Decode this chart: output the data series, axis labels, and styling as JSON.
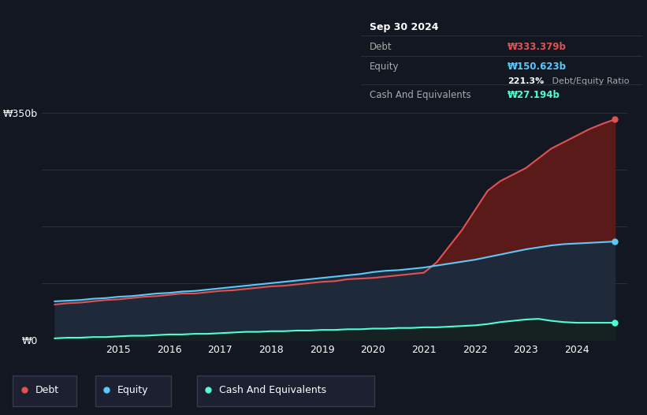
{
  "background_color": "#131722",
  "plot_bg_color": "#131722",
  "grid_color": "#2a2e39",
  "tooltip_bg": "#0a0b0f",
  "tooltip_border": "#2a2e39",
  "ylabel_top": "₩350b",
  "ylabel_bottom": "₩0",
  "x_ticks": [
    "2015",
    "2016",
    "2017",
    "2018",
    "2019",
    "2020",
    "2021",
    "2022",
    "2023",
    "2024"
  ],
  "x_tick_positions": [
    2015,
    2016,
    2017,
    2018,
    2019,
    2020,
    2021,
    2022,
    2023,
    2024
  ],
  "ylim": [
    0,
    380
  ],
  "xlim": [
    2013.5,
    2025.0
  ],
  "debt_color": "#e05252",
  "equity_color": "#5bc8fa",
  "cash_color": "#4dffd2",
  "debt_fill_color": "#5a1a1a",
  "equity_fill_color": "#1e2a3a",
  "cash_fill_color": "#162222",
  "legend_bg": "#1c2030",
  "legend_border": "#363a4a",
  "years": [
    2013.75,
    2014.0,
    2014.25,
    2014.5,
    2014.75,
    2015.0,
    2015.25,
    2015.5,
    2015.75,
    2016.0,
    2016.25,
    2016.5,
    2016.75,
    2017.0,
    2017.25,
    2017.5,
    2017.75,
    2018.0,
    2018.25,
    2018.5,
    2018.75,
    2019.0,
    2019.25,
    2019.5,
    2019.75,
    2020.0,
    2020.25,
    2020.5,
    2020.75,
    2021.0,
    2021.25,
    2021.5,
    2021.75,
    2022.0,
    2022.25,
    2022.5,
    2022.75,
    2023.0,
    2023.25,
    2023.5,
    2023.75,
    2024.0,
    2024.25,
    2024.5,
    2024.75
  ],
  "debt": [
    55,
    57,
    58,
    60,
    62,
    63,
    65,
    67,
    68,
    70,
    72,
    72,
    74,
    76,
    77,
    79,
    81,
    83,
    84,
    86,
    88,
    90,
    91,
    94,
    95,
    96,
    98,
    100,
    102,
    104,
    120,
    145,
    170,
    200,
    230,
    245,
    255,
    265,
    280,
    295,
    305,
    315,
    325,
    333,
    340
  ],
  "equity": [
    60,
    61,
    62,
    64,
    65,
    67,
    68,
    70,
    72,
    73,
    75,
    76,
    78,
    80,
    82,
    84,
    86,
    88,
    90,
    92,
    94,
    96,
    98,
    100,
    102,
    105,
    107,
    108,
    110,
    112,
    115,
    118,
    121,
    124,
    128,
    132,
    136,
    140,
    143,
    146,
    148,
    149,
    150,
    151,
    152
  ],
  "cash": [
    3,
    4,
    4,
    5,
    5,
    6,
    7,
    7,
    8,
    9,
    9,
    10,
    10,
    11,
    12,
    13,
    13,
    14,
    14,
    15,
    15,
    16,
    16,
    17,
    17,
    18,
    18,
    19,
    19,
    20,
    20,
    21,
    22,
    23,
    25,
    28,
    30,
    32,
    33,
    30,
    28,
    27,
    27,
    27,
    27
  ],
  "line_width": 1.5,
  "marker_size": 5,
  "last_x": 2024.75,
  "last_debt": 340,
  "last_equity": 152,
  "last_cash": 27,
  "tooltip_date": "Sep 30 2024",
  "tooltip_debt_label": "Debt",
  "tooltip_debt_value": "₩333.379b",
  "tooltip_equity_label": "Equity",
  "tooltip_equity_value": "₩150.623b",
  "tooltip_ratio": "221.3%",
  "tooltip_ratio_suffix": " Debt/Equity Ratio",
  "tooltip_cash_label": "Cash And Equivalents",
  "tooltip_cash_value": "₩27.194b"
}
